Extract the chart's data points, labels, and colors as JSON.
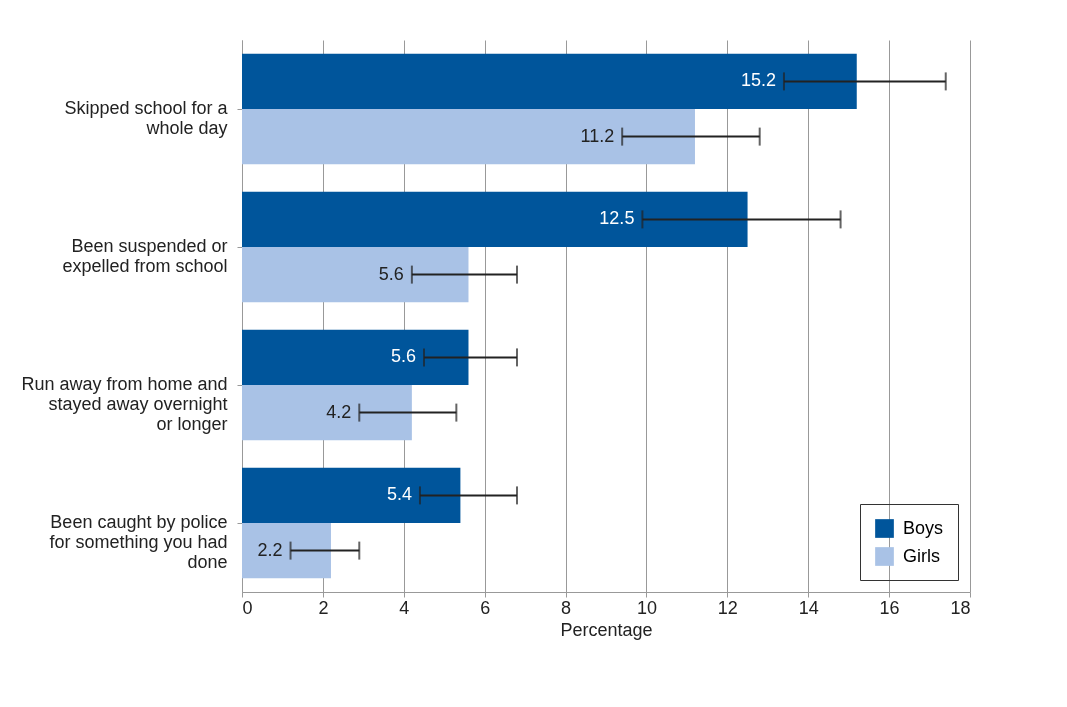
{
  "chart_data": {
    "type": "bar",
    "orientation": "horizontal",
    "xlabel": "Percentage",
    "categories": [
      "Skipped school for a whole day",
      "Been suspended or expelled from school",
      "Run away from home and stayed away overnight or longer",
      "Been caught by police for something you had done"
    ],
    "series": [
      {
        "name": "Boys",
        "color": "#00559b",
        "values": [
          15.2,
          12.5,
          5.6,
          5.4
        ],
        "errors": [
          [
            13.4,
            17.4
          ],
          [
            9.9,
            14.8
          ],
          [
            4.5,
            6.8
          ],
          [
            4.4,
            6.8
          ]
        ]
      },
      {
        "name": "Girls",
        "color": "#a9c2e6",
        "values": [
          11.2,
          5.6,
          4.2,
          2.2
        ],
        "errors": [
          [
            9.4,
            12.8
          ],
          [
            4.2,
            6.8
          ],
          [
            2.9,
            5.3
          ],
          [
            1.2,
            2.9
          ]
        ]
      }
    ],
    "xlim": [
      0,
      18
    ],
    "xticks": [
      0,
      2,
      4,
      6,
      8,
      10,
      12,
      14,
      16,
      18
    ],
    "grid": "x",
    "legend": "bottom right",
    "data_labels": true
  }
}
